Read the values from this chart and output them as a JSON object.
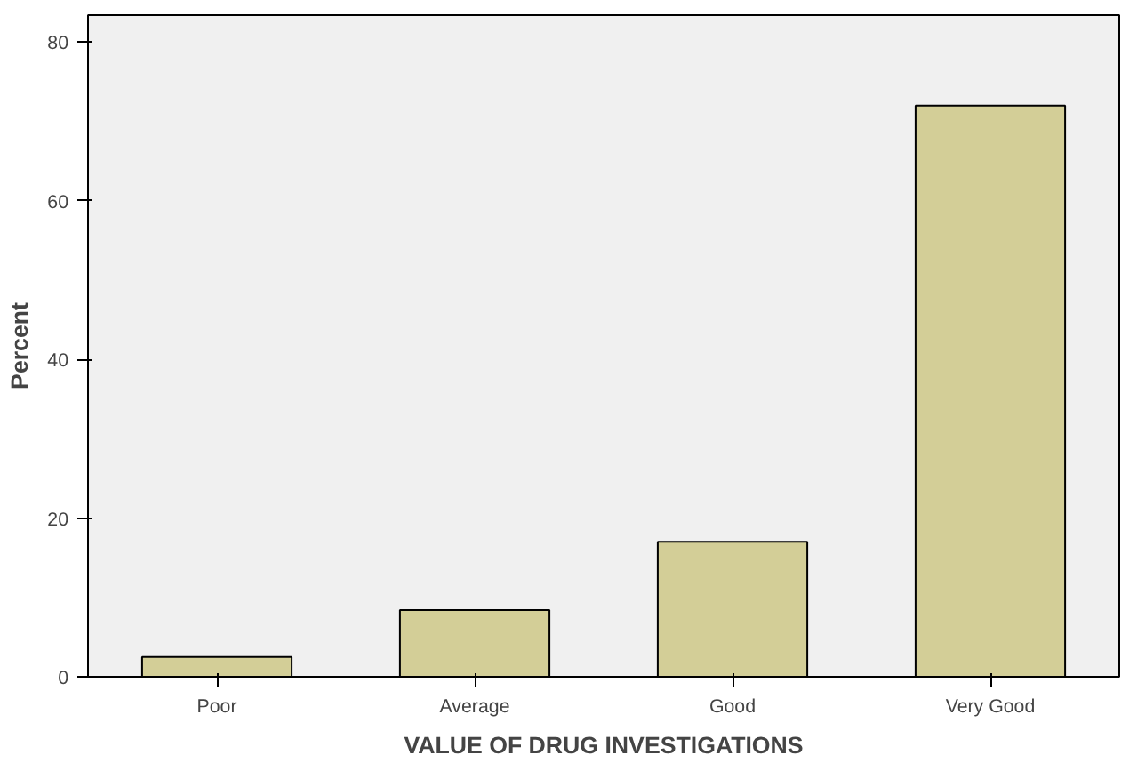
{
  "chart_data": {
    "type": "bar",
    "xlabel": "VALUE OF DRUG INVESTIGATIONS",
    "ylabel": "Percent",
    "categories": [
      "Poor",
      "Average",
      "Good",
      "Very Good"
    ],
    "values": [
      2.5,
      8.4,
      17.0,
      72.0
    ],
    "color": "#d3ce97",
    "ylim": [
      0,
      83.4
    ],
    "yticks": [
      0,
      20,
      40,
      60,
      80
    ],
    "grid": false
  }
}
